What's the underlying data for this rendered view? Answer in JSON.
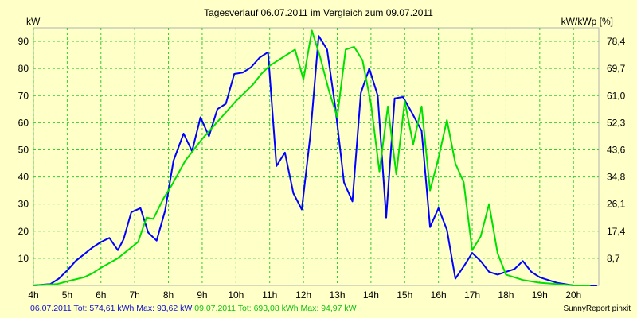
{
  "chart_data": {
    "type": "line",
    "title": "Tagesverlauf 06.07.2011 im Vergleich zum 09.07.2011",
    "ylabel": "kW",
    "ylabel_right": "kW/kWp [%]",
    "xlim": [
      4,
      20.75
    ],
    "ylim": [
      0,
      95
    ],
    "x_ticks": [
      4,
      5,
      6,
      7,
      8,
      9,
      10,
      11,
      12,
      13,
      14,
      15,
      16,
      17,
      18,
      19,
      20
    ],
    "x_tick_labels": [
      "4h",
      "5h",
      "6h",
      "7h",
      "8h",
      "9h",
      "10h",
      "11h",
      "12h",
      "13h",
      "14h",
      "15h",
      "16h",
      "17h",
      "18h",
      "19h",
      "20h"
    ],
    "y_ticks": [
      10,
      20,
      30,
      40,
      50,
      60,
      70,
      80,
      90
    ],
    "y_tick_labels": [
      "10",
      "20",
      "30",
      "40",
      "50",
      "60",
      "70",
      "80",
      "90"
    ],
    "y2_tick_labels": [
      "8,7",
      "17,4",
      "26,1",
      "34,8",
      "43,6",
      "52,3",
      "61,0",
      "69,7",
      "78,4"
    ],
    "grid": true,
    "series": [
      {
        "name": "06.07.2011",
        "color": "#0000ff",
        "x": [
          4.0,
          4.5,
          4.75,
          5.0,
          5.25,
          5.5,
          5.75,
          6.0,
          6.25,
          6.5,
          6.67,
          6.9,
          7.17,
          7.4,
          7.65,
          7.9,
          8.15,
          8.45,
          8.7,
          8.95,
          9.2,
          9.45,
          9.7,
          9.95,
          10.2,
          10.45,
          10.7,
          10.95,
          11.2,
          11.45,
          11.7,
          11.95,
          12.2,
          12.45,
          12.7,
          12.95,
          13.2,
          13.45,
          13.7,
          13.95,
          14.2,
          14.45,
          14.7,
          14.95,
          15.2,
          15.5,
          15.75,
          16.0,
          16.25,
          16.5,
          16.75,
          17.0,
          17.25,
          17.5,
          17.75,
          18.0,
          18.25,
          18.5,
          18.75,
          19.0,
          19.25,
          19.5,
          19.75,
          20.0,
          20.3,
          20.7
        ],
        "values": [
          0,
          0.5,
          2.5,
          5.5,
          9,
          11.5,
          14,
          16,
          17.5,
          13,
          17,
          27,
          28.5,
          19.5,
          16.5,
          27.5,
          46,
          56,
          49.5,
          62,
          55,
          65,
          67,
          78,
          78.5,
          80.5,
          84,
          86,
          44,
          49,
          34,
          28,
          55,
          92,
          87,
          65,
          38,
          31,
          71,
          80,
          70,
          25,
          69,
          69.5,
          64,
          57,
          21.5,
          28.5,
          20.5,
          2.5,
          7,
          12,
          9,
          5,
          4,
          5,
          6,
          9,
          5,
          3,
          2,
          1,
          0.5,
          0,
          0,
          0
        ]
      },
      {
        "name": "09.07.2011",
        "color": "#00e000",
        "x": [
          4.0,
          4.7,
          5.0,
          5.5,
          5.75,
          6.0,
          6.5,
          6.8,
          7.1,
          7.35,
          7.55,
          7.85,
          8.1,
          8.5,
          9.0,
          9.5,
          10.0,
          10.5,
          10.75,
          11.0,
          11.5,
          11.75,
          12.0,
          12.25,
          12.5,
          12.75,
          13.0,
          13.25,
          13.5,
          13.75,
          14.0,
          14.25,
          14.5,
          14.75,
          15.0,
          15.25,
          15.5,
          15.75,
          16.0,
          16.25,
          16.5,
          16.75,
          17.0,
          17.25,
          17.5,
          17.75,
          18.0,
          18.25,
          18.5,
          18.75,
          19.0,
          19.5,
          20.0,
          20.5
        ],
        "values": [
          0,
          0.5,
          1.5,
          3,
          4.5,
          6.5,
          10,
          13,
          16,
          25,
          24.5,
          32,
          37,
          46,
          54,
          61,
          68,
          74,
          78,
          81,
          85,
          87,
          76,
          94,
          84,
          72,
          62,
          87,
          88,
          83,
          67,
          42,
          66,
          41,
          68,
          52,
          66,
          35,
          47,
          61,
          45,
          38,
          13,
          18,
          30,
          12,
          4,
          3,
          2,
          1.5,
          1,
          0.5,
          0,
          0
        ]
      }
    ],
    "footer": {
      "series1_text": "06.07.2011 Tot: 574,61 kWh Max: 93,62 kW",
      "series2_text": "09.07.2011 Tot: 693,08 kWh Max: 94,97 kW",
      "credit": "SunnyReport pinxit"
    }
  }
}
